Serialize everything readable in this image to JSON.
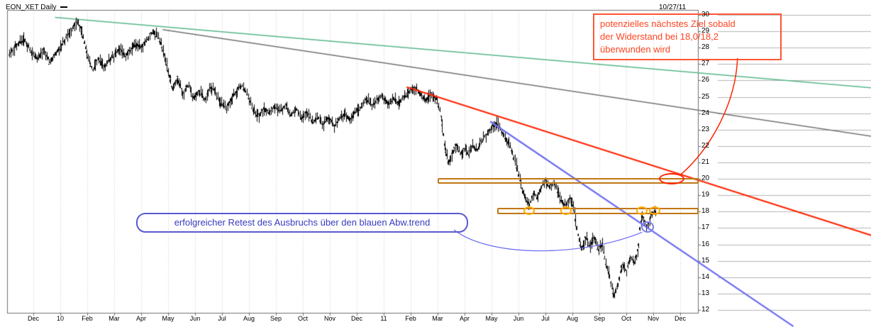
{
  "header": {
    "symbol": "EON_XET Daily",
    "date": "10/27/11"
  },
  "colors": {
    "candle": "#000000",
    "grid": "#c9c9c9",
    "margin_grid": "#b5b5b5",
    "axis": "#6f6f6f",
    "green_line": "#55b588",
    "gray_line": "#707070",
    "red_line": "#ff2400",
    "blue_line": "#6b6bf0",
    "resistance_zone": "#c07818",
    "touch_circle": "#ffaa00",
    "note_red": "#ff4422",
    "note_blue": "#3a3ac0"
  },
  "annotations": {
    "target_note": {
      "lines": [
        "potenzielles nächstes Ziel sobald",
        "der Widerstand bei 18,0/18,2",
        "überwunden wird"
      ]
    },
    "retest_note": {
      "text": "erfolgreicher Retest des Ausbruchs über den blauen Abw.trend"
    }
  },
  "chart_data": {
    "type": "candlestick",
    "title": "EON_XET Daily",
    "x_ticks": [
      "Dec",
      "10",
      "Feb",
      "Mar",
      "Apr",
      "May",
      "Jun",
      "Jul",
      "Aug",
      "Sep",
      "Oct",
      "Nov",
      "Dec",
      "11",
      "Feb",
      "Mar",
      "Apr",
      "May",
      "Jun",
      "Jul",
      "Aug",
      "Sep",
      "Oct",
      "Nov",
      "Dec"
    ],
    "y_ticks": [
      30,
      29,
      28,
      27,
      26,
      25,
      24,
      23,
      22,
      21,
      20,
      19,
      18,
      17,
      16,
      15,
      14,
      13,
      12
    ],
    "y_range": [
      12,
      30
    ],
    "bar_range": [
      -0.9,
      23.1
    ],
    "bar_step": 0.045,
    "price_path": [
      [
        -0.9,
        27.6
      ],
      [
        -0.6,
        28.2
      ],
      [
        -0.35,
        28.5
      ],
      [
        -0.1,
        27.8
      ],
      [
        0.15,
        27.3
      ],
      [
        0.4,
        27.9
      ],
      [
        0.6,
        27.1
      ],
      [
        0.9,
        27.8
      ],
      [
        1.15,
        28.4
      ],
      [
        1.4,
        29.1
      ],
      [
        1.6,
        29.6
      ],
      [
        1.75,
        29.2
      ],
      [
        1.9,
        28.3
      ],
      [
        2.05,
        27.3
      ],
      [
        2.2,
        26.6
      ],
      [
        2.4,
        27.4
      ],
      [
        2.6,
        26.8
      ],
      [
        2.8,
        27.2
      ],
      [
        3.0,
        27.6
      ],
      [
        3.2,
        28.0
      ],
      [
        3.4,
        27.5
      ],
      [
        3.6,
        27.9
      ],
      [
        3.8,
        28.2
      ],
      [
        4.0,
        28.0
      ],
      [
        4.2,
        28.5
      ],
      [
        4.45,
        29.0
      ],
      [
        4.65,
        28.6
      ],
      [
        4.85,
        27.6
      ],
      [
        5.0,
        26.6
      ],
      [
        5.15,
        25.4
      ],
      [
        5.35,
        26.2
      ],
      [
        5.55,
        25.1
      ],
      [
        5.75,
        25.8
      ],
      [
        5.95,
        24.9
      ],
      [
        6.15,
        25.4
      ],
      [
        6.35,
        24.8
      ],
      [
        6.55,
        25.6
      ],
      [
        6.75,
        25.3
      ],
      [
        6.95,
        24.6
      ],
      [
        7.15,
        24.3
      ],
      [
        7.35,
        24.9
      ],
      [
        7.55,
        25.4
      ],
      [
        7.75,
        25.7
      ],
      [
        7.95,
        25.1
      ],
      [
        8.15,
        24.2
      ],
      [
        8.35,
        23.8
      ],
      [
        8.55,
        24.3
      ],
      [
        8.75,
        24.0
      ],
      [
        8.95,
        24.4
      ],
      [
        9.15,
        24.1
      ],
      [
        9.35,
        24.5
      ],
      [
        9.55,
        23.9
      ],
      [
        9.75,
        24.3
      ],
      [
        9.95,
        23.7
      ],
      [
        10.15,
        24.1
      ],
      [
        10.35,
        23.4
      ],
      [
        10.55,
        23.8
      ],
      [
        10.75,
        23.3
      ],
      [
        10.95,
        23.8
      ],
      [
        11.15,
        23.2
      ],
      [
        11.35,
        23.7
      ],
      [
        11.55,
        24.0
      ],
      [
        11.75,
        23.6
      ],
      [
        11.95,
        24.1
      ],
      [
        12.15,
        24.4
      ],
      [
        12.35,
        24.9
      ],
      [
        12.55,
        24.5
      ],
      [
        12.75,
        24.8
      ],
      [
        12.95,
        25.1
      ],
      [
        13.15,
        24.6
      ],
      [
        13.35,
        24.9
      ],
      [
        13.55,
        24.6
      ],
      [
        13.75,
        25.0
      ],
      [
        13.95,
        25.3
      ],
      [
        14.15,
        25.6
      ],
      [
        14.35,
        25.2
      ],
      [
        14.55,
        24.8
      ],
      [
        14.75,
        25.2
      ],
      [
        14.95,
        24.9
      ],
      [
        15.1,
        24.0
      ],
      [
        15.25,
        22.2
      ],
      [
        15.4,
        20.9
      ],
      [
        15.55,
        21.6
      ],
      [
        15.7,
        22.1
      ],
      [
        15.85,
        21.5
      ],
      [
        16.0,
        21.8
      ],
      [
        16.15,
        21.5
      ],
      [
        16.3,
        22.0
      ],
      [
        16.45,
        21.7
      ],
      [
        16.6,
        22.2
      ],
      [
        16.75,
        22.6
      ],
      [
        16.9,
        22.9
      ],
      [
        17.05,
        23.2
      ],
      [
        17.2,
        23.4
      ],
      [
        17.35,
        23.0
      ],
      [
        17.5,
        22.5
      ],
      [
        17.65,
        22.1
      ],
      [
        17.8,
        21.4
      ],
      [
        17.95,
        20.6
      ],
      [
        18.1,
        19.6
      ],
      [
        18.25,
        18.8
      ],
      [
        18.4,
        18.4
      ],
      [
        18.55,
        19.2
      ],
      [
        18.7,
        18.8
      ],
      [
        18.85,
        19.5
      ],
      [
        19.0,
        19.9
      ],
      [
        19.15,
        19.4
      ],
      [
        19.3,
        19.8
      ],
      [
        19.45,
        19.2
      ],
      [
        19.6,
        18.6
      ],
      [
        19.75,
        18.3
      ],
      [
        19.9,
        18.9
      ],
      [
        20.05,
        18.2
      ],
      [
        20.2,
        16.6
      ],
      [
        20.35,
        15.7
      ],
      [
        20.5,
        16.5
      ],
      [
        20.65,
        15.9
      ],
      [
        20.8,
        16.5
      ],
      [
        20.95,
        15.7
      ],
      [
        21.1,
        16.0
      ],
      [
        21.25,
        14.8
      ],
      [
        21.4,
        13.8
      ],
      [
        21.55,
        12.9
      ],
      [
        21.7,
        13.6
      ],
      [
        21.85,
        14.9
      ],
      [
        22.0,
        14.3
      ],
      [
        22.15,
        15.2
      ],
      [
        22.3,
        14.8
      ],
      [
        22.45,
        15.9
      ],
      [
        22.5,
        16.9
      ],
      [
        22.57,
        17.8
      ],
      [
        22.65,
        17.5
      ],
      [
        22.75,
        17.0
      ],
      [
        22.85,
        17.4
      ],
      [
        22.95,
        17.9
      ],
      [
        23.1,
        18.0
      ]
    ],
    "trend_lines": [
      {
        "name": "long-term-trend-green",
        "color": "#55b588",
        "width": 1.5,
        "layer": "under",
        "from": [
          0.8,
          29.85
        ],
        "to": [
          31.1,
          25.55
        ]
      },
      {
        "name": "secondary-trend-gray",
        "color": "#707070",
        "width": 1.5,
        "layer": "under",
        "from": [
          4.8,
          29.1
        ],
        "to": [
          31.1,
          22.6
        ]
      },
      {
        "name": "downtrend-red",
        "color": "#ff2400",
        "width": 2.2,
        "layer": "over",
        "from": [
          13.85,
          25.6
        ],
        "to": [
          31.1,
          16.55
        ]
      },
      {
        "name": "downtrend-blue-broken",
        "color": "#6b6bf0",
        "width": 2.2,
        "layer": "over",
        "from": [
          16.95,
          23.5
        ],
        "to": [
          28.2,
          11.0
        ]
      }
    ],
    "resistance_zones": [
      {
        "name": "target-zone-20",
        "price_top": 20.05,
        "price_bottom": 19.7,
        "from_month": 15.0,
        "to_month": 24.68,
        "color": "#c07818"
      },
      {
        "name": "resistance-18-0-18-2",
        "price_top": 18.25,
        "price_bottom": 17.85,
        "from_month": 17.2,
        "to_month": 24.68,
        "color": "#c07818"
      }
    ],
    "markers": {
      "touch_circles": {
        "price": 18.05,
        "months": [
          18.4,
          19.75,
          22.57,
          23.05
        ],
        "color": "#ffaa00"
      },
      "retest_circle": {
        "month": 22.8,
        "price": 17.05,
        "color": "#7b7bf0"
      },
      "target_ellipse": {
        "month": 23.68,
        "price": 20.0,
        "color": "#ff2400"
      }
    }
  }
}
